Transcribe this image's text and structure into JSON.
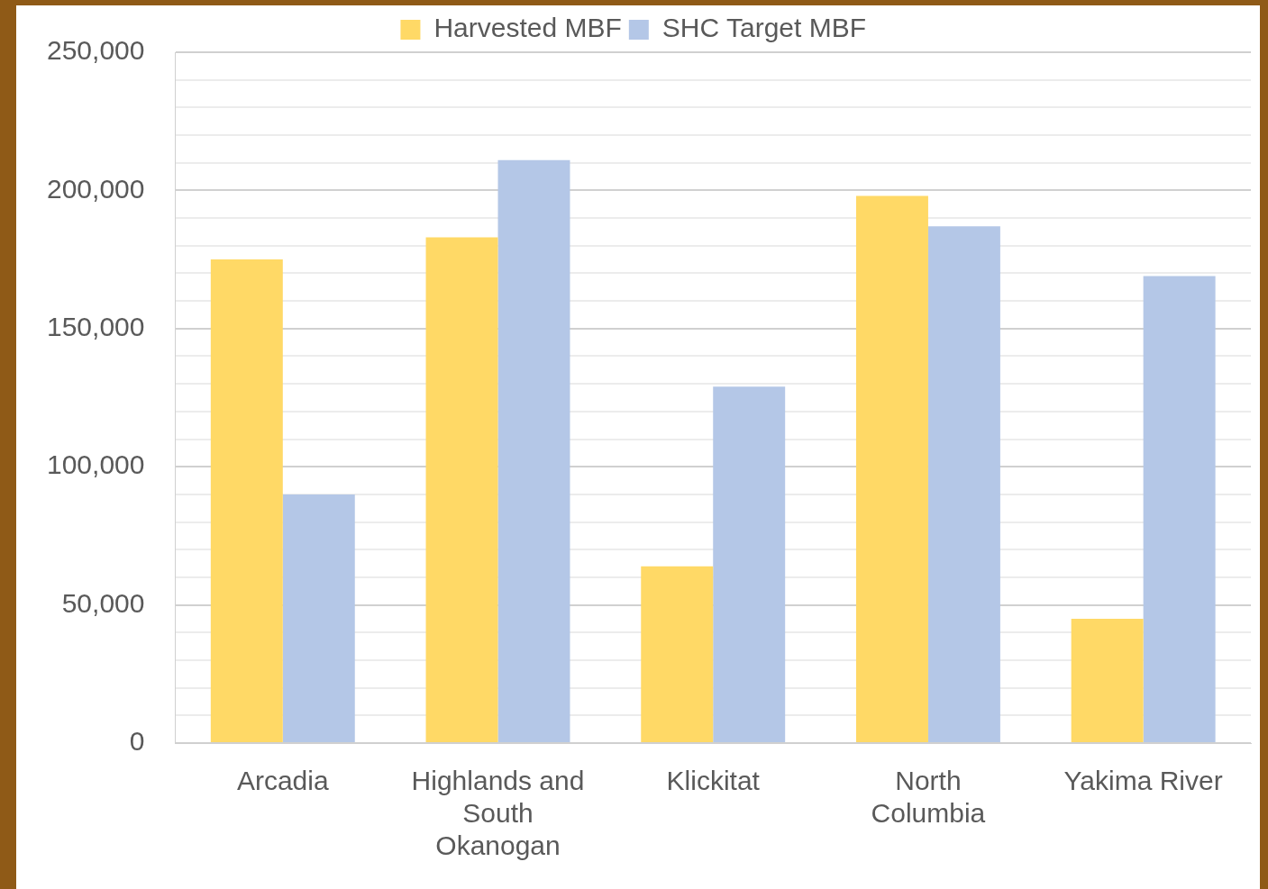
{
  "chart_data": {
    "type": "bar",
    "categories": [
      "Arcadia",
      "Highlands and South Okanogan",
      "Klickitat",
      "North Columbia",
      "Yakima River"
    ],
    "series": [
      {
        "name": "Harvested MBF",
        "color": "#ffd966",
        "values": [
          175000,
          183000,
          64000,
          198000,
          45000
        ]
      },
      {
        "name": "SHC Target MBF",
        "color": "#b4c7e7",
        "values": [
          90000,
          211000,
          129000,
          187000,
          169000
        ]
      }
    ],
    "ylim": [
      0,
      250000
    ],
    "yticks": [
      0,
      {
        "value": 10000,
        "label": null
      },
      {
        "value": 20000,
        "label": null
      },
      {
        "value": 30000,
        "label": null
      },
      {
        "value": 40000,
        "label": null
      },
      {
        "value": 50000,
        "label": "50,000"
      },
      {
        "value": 60000,
        "label": null
      },
      {
        "value": 70000,
        "label": null
      },
      {
        "value": 80000,
        "label": null
      },
      {
        "value": 90000,
        "label": null
      },
      {
        "value": 100000,
        "label": "100,000"
      },
      {
        "value": 110000,
        "label": null
      },
      {
        "value": 120000,
        "label": null
      },
      {
        "value": 130000,
        "label": null
      },
      {
        "value": 140000,
        "label": null
      },
      {
        "value": 150000,
        "label": "150,000"
      },
      {
        "value": 160000,
        "label": null
      },
      {
        "value": 170000,
        "label": null
      },
      {
        "value": 180000,
        "label": null
      },
      {
        "value": 190000,
        "label": null
      },
      {
        "value": 200000,
        "label": "200,000"
      },
      {
        "value": 210000,
        "label": null
      },
      {
        "value": 220000,
        "label": null
      },
      {
        "value": 230000,
        "label": null
      },
      {
        "value": 240000,
        "label": null
      },
      {
        "value": 250000,
        "label": "250,000"
      }
    ],
    "grid": "y",
    "legend": "top"
  }
}
